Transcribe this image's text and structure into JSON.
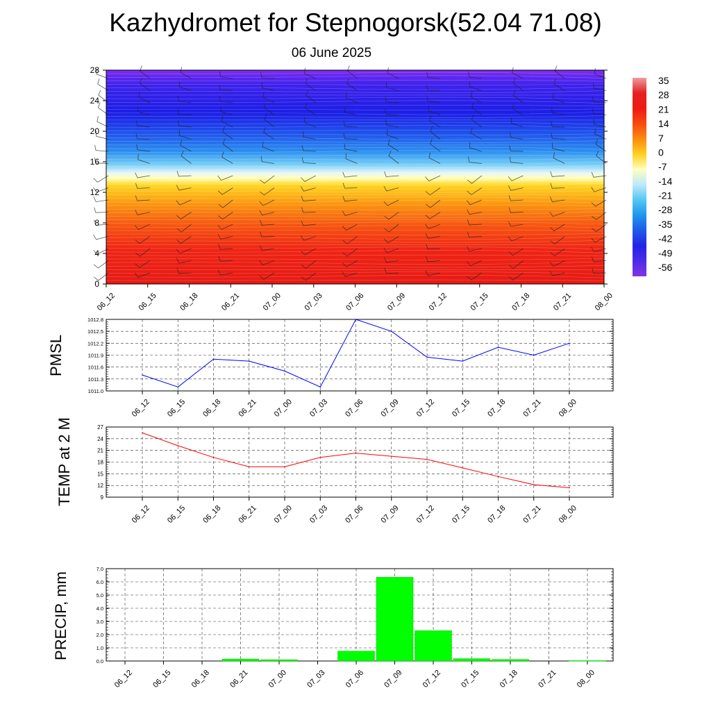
{
  "header": {
    "title": "Kazhydromet for Stepnogorsk(52.04 71.08)",
    "subtitle": "06 June 2025"
  },
  "chart_data": [
    {
      "type": "heatmap",
      "title": "",
      "xlabel": "",
      "ylabel": "",
      "x_ticks": [
        "06_12",
        "06_15",
        "06_18",
        "06_21",
        "07_00",
        "07_03",
        "07_06",
        "07_09",
        "07_12",
        "07_15",
        "07_18",
        "07_21",
        "08_00"
      ],
      "y_ticks": [
        0,
        4,
        8,
        12,
        16,
        20,
        24,
        28
      ],
      "ylim": [
        0,
        28
      ],
      "zero_isotherm_level": 12.7,
      "colorbar_labels": [
        35,
        28,
        21,
        14,
        7,
        0,
        -7,
        -14,
        -21,
        -28,
        -35,
        -42,
        -49,
        -56
      ],
      "color_stops": [
        {
          "value": 35,
          "color": "#ee9c9c"
        },
        {
          "value": 28,
          "color": "#e32222"
        },
        {
          "value": 21,
          "color": "#ee1a12"
        },
        {
          "value": 14,
          "color": "#f74a10"
        },
        {
          "value": 7,
          "color": "#fb8a10"
        },
        {
          "value": 0,
          "color": "#ffd020"
        },
        {
          "value": -7,
          "color": "#ffffc0"
        },
        {
          "value": -14,
          "color": "#bfe9fb"
        },
        {
          "value": -21,
          "color": "#52c8f3"
        },
        {
          "value": -28,
          "color": "#1f95ee"
        },
        {
          "value": -35,
          "color": "#1f5ae8"
        },
        {
          "value": -42,
          "color": "#2222e6"
        },
        {
          "value": -49,
          "color": "#4b2ce8"
        },
        {
          "value": -56,
          "color": "#8434e2"
        }
      ],
      "wind_barbs": true
    },
    {
      "type": "line",
      "ylabel": "PMSL",
      "categories": [
        "06_12",
        "06_15",
        "06_18",
        "06_21",
        "07_00",
        "07_03",
        "07_06",
        "07_09",
        "07_12",
        "07_15",
        "07_18",
        "07_21",
        "08_00"
      ],
      "y_ticks": [
        "1011.0",
        "1011.3",
        "1011.6",
        "1011.9",
        "1012.2",
        "1012.5",
        "1012.8"
      ],
      "ylim": [
        1011.0,
        1012.8
      ],
      "series": [
        {
          "color": "#0000ff",
          "values": [
            1011.4,
            1011.1,
            1011.8,
            1011.75,
            1011.5,
            1011.1,
            1012.8,
            1012.5,
            1011.85,
            1011.75,
            1012.1,
            1011.9,
            1012.2
          ]
        }
      ]
    },
    {
      "type": "line",
      "ylabel": "TEMP at 2 M",
      "categories": [
        "06_12",
        "06_15",
        "06_18",
        "06_21",
        "07_00",
        "07_03",
        "07_06",
        "07_09",
        "07_12",
        "07_15",
        "07_18",
        "07_21",
        "08_00"
      ],
      "y_ticks": [
        9,
        12,
        15,
        18,
        21,
        24,
        27
      ],
      "ylim": [
        9,
        27
      ],
      "series": [
        {
          "color": "#ff0000",
          "values": [
            25.5,
            22.2,
            19.2,
            16.8,
            16.8,
            19.2,
            20.3,
            19.5,
            18.7,
            16.5,
            14.3,
            12.2,
            11.4
          ]
        }
      ]
    },
    {
      "type": "bar",
      "ylabel": "PRECIP, mm",
      "categories": [
        "06_12",
        "06_15",
        "06_18",
        "06_21",
        "07_00",
        "07_03",
        "07_06",
        "07_09",
        "07_12",
        "07_15",
        "07_18",
        "07_21",
        "08_00"
      ],
      "y_ticks": [
        "0.0",
        "1.0",
        "2.0",
        "3.0",
        "4.0",
        "5.0",
        "6.0",
        "7.0"
      ],
      "ylim": [
        0,
        7
      ],
      "bar_color": "#00ff00",
      "values": [
        0,
        0,
        0,
        0.15,
        0.1,
        0,
        0.75,
        6.35,
        2.3,
        0.18,
        0.12,
        0,
        0.03
      ]
    }
  ]
}
